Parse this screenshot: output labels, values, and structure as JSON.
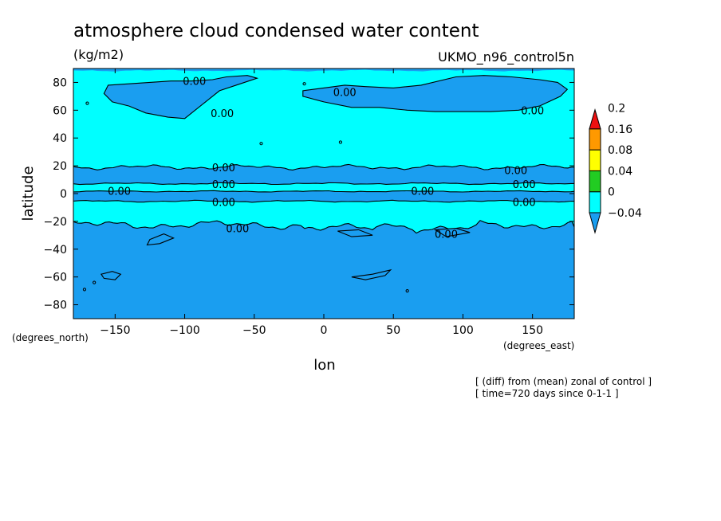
{
  "header": {
    "title": "atmosphere cloud condensed water content",
    "units": "(kg/m2)",
    "model": "UKMO_n96_control5n"
  },
  "footer": {
    "line1": "[ (diff) from (mean) zonal of control ]",
    "line2": "[ time=720 days since 0-1-1 ]"
  },
  "colors": {
    "negative": "#1a9ef0",
    "band_0_004": "#00ffff",
    "band_004_008": "#22cc22",
    "band_008_016": "#ffff00",
    "band_016_02": "#ff9900",
    "above_02": "#ee1111",
    "contour": "#000000"
  },
  "chart_data": {
    "type": "heatmap",
    "title": "atmosphere cloud condensed water content",
    "subtitle": "UKMO_n96_control5n",
    "units": "(kg/m2)",
    "xlabel": "lon",
    "ylabel": "latitude",
    "x_unit_label": "(degrees_east)",
    "y_unit_label": "(degrees_north)",
    "xlim": [
      -180,
      180
    ],
    "ylim": [
      -90,
      90
    ],
    "x_ticks": [
      -150,
      -100,
      -50,
      0,
      50,
      100,
      150
    ],
    "y_ticks": [
      -80,
      -60,
      -40,
      -20,
      0,
      20,
      40,
      60,
      80
    ],
    "colorbar": {
      "levels": [
        -0.04,
        0,
        0.04,
        0.08,
        0.16,
        0.2
      ],
      "labels": [
        "-0.04",
        "0",
        "0.04",
        "0.08",
        "0.16",
        "0.2"
      ],
      "colors": [
        "#1a9ef0",
        "#00ffff",
        "#22cc22",
        "#ffff00",
        "#ff9900",
        "#ee1111"
      ]
    },
    "contour_labels": [
      {
        "text": "0.00",
        "lon": -93,
        "lat": 81
      },
      {
        "text": "0.00",
        "lon": 15,
        "lat": 73
      },
      {
        "text": "0.00",
        "lon": -73,
        "lat": 58
      },
      {
        "text": "0.00",
        "lon": 150,
        "lat": 60
      },
      {
        "text": "0.00",
        "lon": -72,
        "lat": 19
      },
      {
        "text": "0.00",
        "lon": 138,
        "lat": 17
      },
      {
        "text": "0.00",
        "lon": -72,
        "lat": 7
      },
      {
        "text": "0.00",
        "lon": 144,
        "lat": 7
      },
      {
        "text": "0.00",
        "lon": -147,
        "lat": 2
      },
      {
        "text": "0.00",
        "lon": 71,
        "lat": 2
      },
      {
        "text": "0.00",
        "lon": -72,
        "lat": -6
      },
      {
        "text": "0.00",
        "lon": 144,
        "lat": -6
      },
      {
        "text": "0.00",
        "lon": -62,
        "lat": -25
      },
      {
        "text": "0.00",
        "lon": 88,
        "lat": -29
      }
    ]
  }
}
